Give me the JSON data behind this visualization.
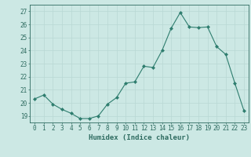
{
  "x": [
    0,
    1,
    2,
    3,
    4,
    5,
    6,
    7,
    8,
    9,
    10,
    11,
    12,
    13,
    14,
    15,
    16,
    17,
    18,
    19,
    20,
    21,
    22,
    23
  ],
  "y": [
    20.3,
    20.6,
    19.9,
    19.5,
    19.2,
    18.8,
    18.8,
    19.0,
    19.9,
    20.4,
    21.5,
    21.6,
    22.8,
    22.7,
    24.0,
    25.7,
    26.9,
    25.8,
    25.75,
    25.8,
    24.3,
    23.7,
    21.5,
    19.4
  ],
  "xlabel": "Humidex (Indice chaleur)",
  "ylim": [
    18.5,
    27.5
  ],
  "xlim": [
    -0.5,
    23.5
  ],
  "line_color": "#2e7d6e",
  "marker_color": "#2e7d6e",
  "bg_color": "#cce8e4",
  "grid_color": "#b8d8d4",
  "tick_color": "#2e6b60",
  "xticks": [
    0,
    1,
    2,
    3,
    4,
    5,
    6,
    7,
    8,
    9,
    10,
    11,
    12,
    13,
    14,
    15,
    16,
    17,
    18,
    19,
    20,
    21,
    22,
    23
  ],
  "yticks": [
    19,
    20,
    21,
    22,
    23,
    24,
    25,
    26,
    27
  ],
  "xlabel_fontsize": 6.5,
  "tick_fontsize": 5.5
}
